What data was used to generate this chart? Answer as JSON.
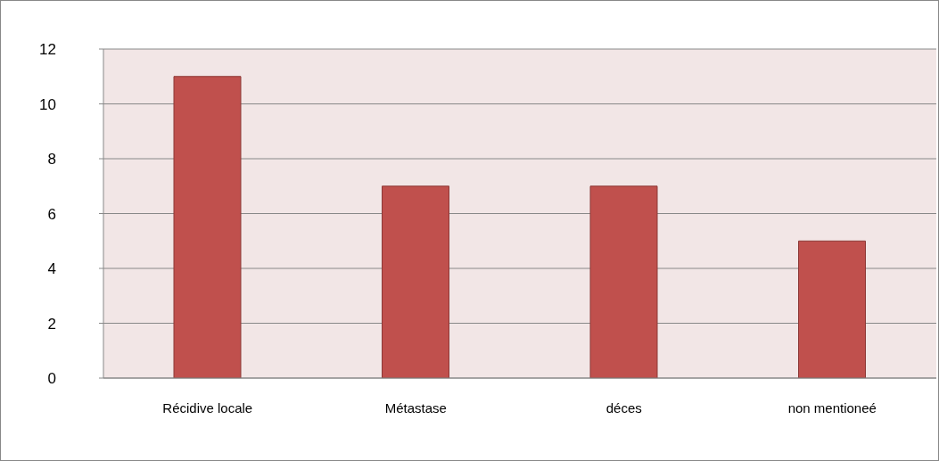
{
  "chart_data": {
    "type": "bar",
    "categories": [
      "Récidive locale",
      "Métastase",
      "déces",
      "non mentioneé"
    ],
    "values": [
      11,
      7,
      7,
      5
    ],
    "color": "#c0504d",
    "ylim": [
      0,
      12
    ],
    "yticks": [
      0,
      2,
      4,
      6,
      8,
      10,
      12
    ],
    "grid": "y"
  }
}
